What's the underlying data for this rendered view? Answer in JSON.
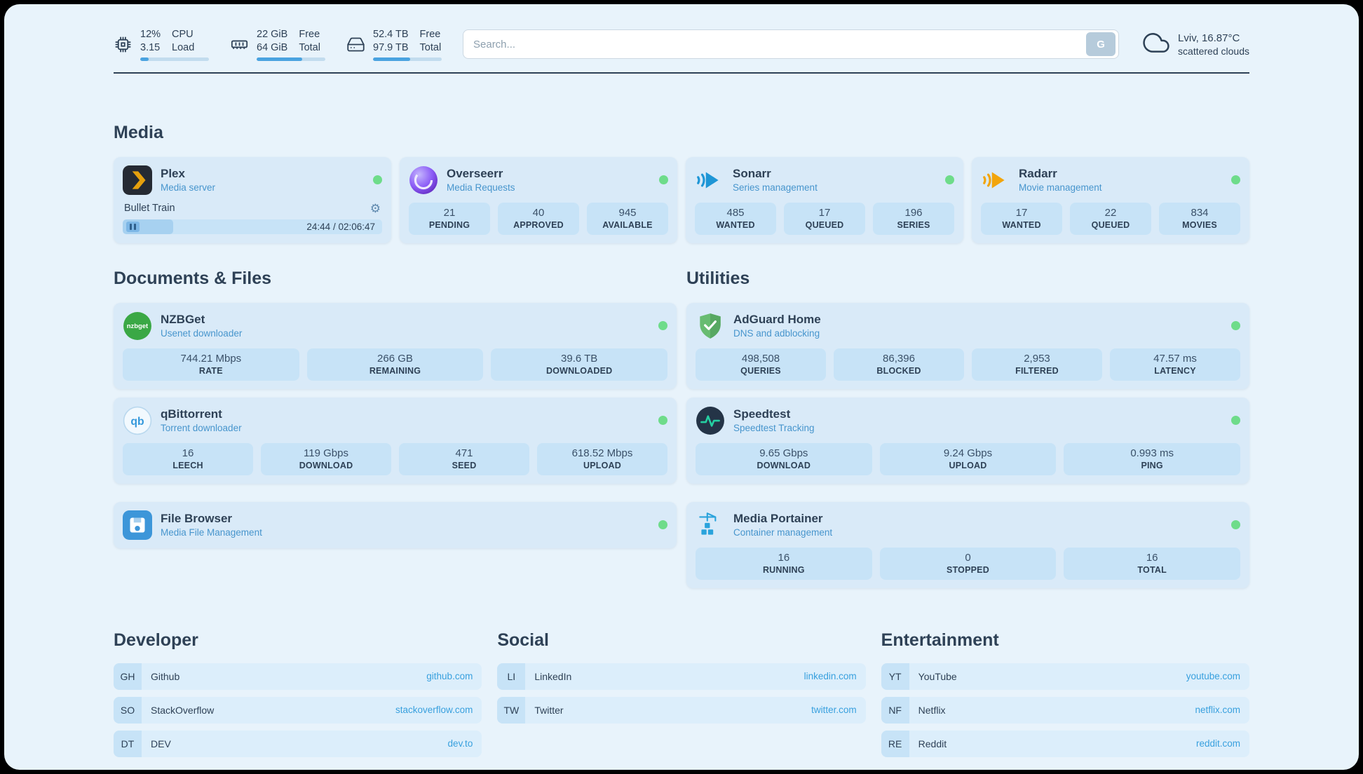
{
  "colors": {
    "background": "#e8f3fb",
    "card": "#d9eaf8",
    "stat_box": "#c7e3f7",
    "text_primary": "#2e4156",
    "subtitle_accent": "#4795cd",
    "link": "#38a0de",
    "status_online": "#6edc8a",
    "progress_fill": "#4aa3e0"
  },
  "topbar": {
    "cpu": {
      "percent": "12%",
      "load": "3.15",
      "label_top": "CPU",
      "label_bottom": "Load",
      "progress_pct": 12
    },
    "memory": {
      "free": "22 GiB",
      "total": "64 GiB",
      "label_top": "Free",
      "label_bottom": "Total",
      "progress_pct": 66
    },
    "storage": {
      "free": "52.4 TB",
      "total": "97.9 TB",
      "label_top": "Free",
      "label_bottom": "Total",
      "progress_pct": 54
    },
    "search": {
      "placeholder": "Search...",
      "button_label": "G"
    },
    "weather": {
      "location": "Lviv, 16.87°C",
      "condition": "scattered clouds"
    }
  },
  "media": {
    "title": "Media",
    "plex": {
      "name": "Plex",
      "subtitle": "Media server",
      "now_playing": "Bullet Train",
      "time": "24:44 / 02:06:47",
      "progress_pct": 19.5
    },
    "overseerr": {
      "name": "Overseerr",
      "subtitle": "Media Requests",
      "stats": [
        {
          "value": "21",
          "label": "PENDING"
        },
        {
          "value": "40",
          "label": "APPROVED"
        },
        {
          "value": "945",
          "label": "AVAILABLE"
        }
      ]
    },
    "sonarr": {
      "name": "Sonarr",
      "subtitle": "Series management",
      "stats": [
        {
          "value": "485",
          "label": "WANTED"
        },
        {
          "value": "17",
          "label": "QUEUED"
        },
        {
          "value": "196",
          "label": "SERIES"
        }
      ]
    },
    "radarr": {
      "name": "Radarr",
      "subtitle": "Movie management",
      "stats": [
        {
          "value": "17",
          "label": "WANTED"
        },
        {
          "value": "22",
          "label": "QUEUED"
        },
        {
          "value": "834",
          "label": "MOVIES"
        }
      ]
    }
  },
  "documents": {
    "title": "Documents & Files",
    "nzbget": {
      "name": "NZBGet",
      "subtitle": "Usenet downloader",
      "stats": [
        {
          "value": "744.21 Mbps",
          "label": "RATE"
        },
        {
          "value": "266 GB",
          "label": "REMAINING"
        },
        {
          "value": "39.6 TB",
          "label": "DOWNLOADED"
        }
      ]
    },
    "qbittorrent": {
      "name": "qBittorrent",
      "subtitle": "Torrent downloader",
      "stats": [
        {
          "value": "16",
          "label": "LEECH"
        },
        {
          "value": "119 Gbps",
          "label": "DOWNLOAD"
        },
        {
          "value": "471",
          "label": "SEED"
        },
        {
          "value": "618.52 Mbps",
          "label": "UPLOAD"
        }
      ]
    },
    "filebrowser": {
      "name": "File Browser",
      "subtitle": "Media File Management"
    }
  },
  "utilities": {
    "title": "Utilities",
    "adguard": {
      "name": "AdGuard Home",
      "subtitle": "DNS and adblocking",
      "stats": [
        {
          "value": "498,508",
          "label": "QUERIES"
        },
        {
          "value": "86,396",
          "label": "BLOCKED"
        },
        {
          "value": "2,953",
          "label": "FILTERED"
        },
        {
          "value": "47.57 ms",
          "label": "LATENCY"
        }
      ]
    },
    "speedtest": {
      "name": "Speedtest",
      "subtitle": "Speedtest Tracking",
      "stats": [
        {
          "value": "9.65 Gbps",
          "label": "DOWNLOAD"
        },
        {
          "value": "9.24 Gbps",
          "label": "UPLOAD"
        },
        {
          "value": "0.993 ms",
          "label": "PING"
        }
      ]
    },
    "portainer": {
      "name": "Media Portainer",
      "subtitle": "Container management",
      "stats": [
        {
          "value": "16",
          "label": "RUNNING"
        },
        {
          "value": "0",
          "label": "STOPPED"
        },
        {
          "value": "16",
          "label": "TOTAL"
        }
      ]
    }
  },
  "bookmarks": {
    "developer": {
      "title": "Developer",
      "items": [
        {
          "abbr": "GH",
          "name": "Github",
          "url": "github.com"
        },
        {
          "abbr": "SO",
          "name": "StackOverflow",
          "url": "stackoverflow.com"
        },
        {
          "abbr": "DT",
          "name": "DEV",
          "url": "dev.to"
        }
      ]
    },
    "social": {
      "title": "Social",
      "items": [
        {
          "abbr": "LI",
          "name": "LinkedIn",
          "url": "linkedin.com"
        },
        {
          "abbr": "TW",
          "name": "Twitter",
          "url": "twitter.com"
        }
      ]
    },
    "entertainment": {
      "title": "Entertainment",
      "items": [
        {
          "abbr": "YT",
          "name": "YouTube",
          "url": "youtube.com"
        },
        {
          "abbr": "NF",
          "name": "Netflix",
          "url": "netflix.com"
        },
        {
          "abbr": "RE",
          "name": "Reddit",
          "url": "reddit.com"
        }
      ]
    }
  }
}
